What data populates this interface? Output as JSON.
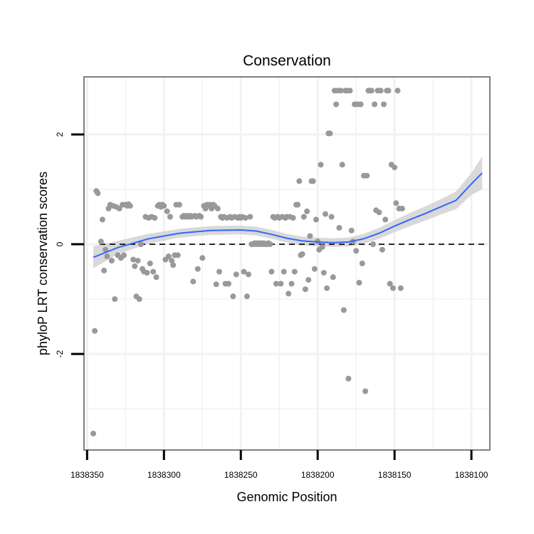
{
  "chart_data": {
    "type": "scatter",
    "title": "Conservation",
    "xlabel": "Genomic Position",
    "ylabel": "phyloP LRT conservation scores",
    "x_reversed": true,
    "xlim": [
      1838352,
      1838088
    ],
    "ylim": [
      -3.75,
      3.05
    ],
    "x_ticks": [
      1838350,
      1838300,
      1838250,
      1838200,
      1838150,
      1838100
    ],
    "x_tick_labels": [
      "1838350",
      "1838300",
      "1838250",
      "1838200",
      "1838150",
      "1838100"
    ],
    "y_ticks": [
      2,
      0,
      -2
    ],
    "y_tick_labels": [
      "2",
      "0",
      "-2"
    ],
    "reference_line": {
      "y": 0,
      "style": "dashed",
      "color": "#000000"
    },
    "grid": true,
    "colors": {
      "points": "#999999",
      "smooth": "#3366ff",
      "ribbon": "#c8c8c8",
      "grid": "#f2f2f2",
      "border": "#808080"
    },
    "points": [
      [
        1838346,
        -3.45
      ],
      [
        1838345,
        -1.58
      ],
      [
        1838344,
        0.97
      ],
      [
        1838343,
        0.93
      ],
      [
        1838341,
        0.05
      ],
      [
        1838340,
        0.45
      ],
      [
        1838339,
        -0.48
      ],
      [
        1838338,
        -0.1
      ],
      [
        1838337,
        -0.22
      ],
      [
        1838336,
        0.65
      ],
      [
        1838335,
        0.72
      ],
      [
        1838334,
        -0.3
      ],
      [
        1838333,
        0.7
      ],
      [
        1838332,
        -1.0
      ],
      [
        1838331,
        0.68
      ],
      [
        1838330,
        -0.2
      ],
      [
        1838329,
        0.65
      ],
      [
        1838328,
        -0.25
      ],
      [
        1838327,
        0.72
      ],
      [
        1838326,
        -0.2
      ],
      [
        1838325,
        0.72
      ],
      [
        1838324,
        0.7
      ],
      [
        1838323,
        0.73
      ],
      [
        1838322,
        0.7
      ],
      [
        1838320,
        -0.28
      ],
      [
        1838319,
        -0.4
      ],
      [
        1838318,
        -0.95
      ],
      [
        1838317,
        -0.3
      ],
      [
        1838316,
        -1.0
      ],
      [
        1838315,
        0.0
      ],
      [
        1838314,
        -0.45
      ],
      [
        1838313,
        -0.5
      ],
      [
        1838312,
        0.5
      ],
      [
        1838311,
        -0.52
      ],
      [
        1838310,
        0.48
      ],
      [
        1838309,
        -0.35
      ],
      [
        1838308,
        0.5
      ],
      [
        1838307,
        -0.5
      ],
      [
        1838306,
        0.48
      ],
      [
        1838305,
        -0.6
      ],
      [
        1838304,
        0.7
      ],
      [
        1838303,
        0.72
      ],
      [
        1838302,
        0.68
      ],
      [
        1838301,
        0.72
      ],
      [
        1838300,
        0.7
      ],
      [
        1838299,
        -0.28
      ],
      [
        1838298,
        0.6
      ],
      [
        1838297,
        -0.22
      ],
      [
        1838296,
        0.5
      ],
      [
        1838295,
        -0.3
      ],
      [
        1838294,
        -0.38
      ],
      [
        1838293,
        -0.2
      ],
      [
        1838292,
        0.72
      ],
      [
        1838291,
        -0.2
      ],
      [
        1838290,
        0.72
      ],
      [
        1838288,
        0.5
      ],
      [
        1838287,
        0.52
      ],
      [
        1838286,
        0.5
      ],
      [
        1838285,
        0.52
      ],
      [
        1838284,
        0.5
      ],
      [
        1838283,
        0.52
      ],
      [
        1838282,
        0.5
      ],
      [
        1838281,
        -0.68
      ],
      [
        1838280,
        0.52
      ],
      [
        1838279,
        0.5
      ],
      [
        1838278,
        -0.45
      ],
      [
        1838277,
        0.52
      ],
      [
        1838276,
        0.5
      ],
      [
        1838275,
        -0.25
      ],
      [
        1838274,
        0.7
      ],
      [
        1838273,
        0.65
      ],
      [
        1838272,
        0.72
      ],
      [
        1838271,
        0.7
      ],
      [
        1838270,
        0.72
      ],
      [
        1838269,
        0.65
      ],
      [
        1838268,
        0.72
      ],
      [
        1838267,
        0.7
      ],
      [
        1838266,
        -0.73
      ],
      [
        1838265,
        0.65
      ],
      [
        1838264,
        -0.5
      ],
      [
        1838263,
        0.5
      ],
      [
        1838262,
        0.48
      ],
      [
        1838261,
        0.5
      ],
      [
        1838260,
        -0.72
      ],
      [
        1838259,
        0.48
      ],
      [
        1838258,
        -0.72
      ],
      [
        1838257,
        0.5
      ],
      [
        1838256,
        0.48
      ],
      [
        1838255,
        -0.95
      ],
      [
        1838254,
        0.5
      ],
      [
        1838253,
        -0.55
      ],
      [
        1838252,
        0.48
      ],
      [
        1838251,
        0.5
      ],
      [
        1838250,
        0.48
      ],
      [
        1838249,
        0.5
      ],
      [
        1838248,
        -0.5
      ],
      [
        1838247,
        0.48
      ],
      [
        1838246,
        -0.95
      ],
      [
        1838245,
        -0.55
      ],
      [
        1838244,
        0.5
      ],
      [
        1838243,
        0.0
      ],
      [
        1838242,
        0.0
      ],
      [
        1838241,
        0.02
      ],
      [
        1838240,
        0.0
      ],
      [
        1838239,
        0.02
      ],
      [
        1838238,
        0.0
      ],
      [
        1838237,
        0.02
      ],
      [
        1838236,
        0.0
      ],
      [
        1838235,
        0.02
      ],
      [
        1838234,
        0.0
      ],
      [
        1838233,
        0.0
      ],
      [
        1838232,
        0.02
      ],
      [
        1838231,
        0.0
      ],
      [
        1838230,
        -0.5
      ],
      [
        1838229,
        0.5
      ],
      [
        1838228,
        0.48
      ],
      [
        1838227,
        -0.72
      ],
      [
        1838226,
        0.5
      ],
      [
        1838225,
        0.48
      ],
      [
        1838224,
        -0.72
      ],
      [
        1838223,
        0.5
      ],
      [
        1838222,
        -0.5
      ],
      [
        1838221,
        0.48
      ],
      [
        1838220,
        0.5
      ],
      [
        1838219,
        -0.9
      ],
      [
        1838218,
        0.5
      ],
      [
        1838217,
        -0.72
      ],
      [
        1838216,
        0.48
      ],
      [
        1838215,
        -0.5
      ],
      [
        1838214,
        0.72
      ],
      [
        1838213,
        0.72
      ],
      [
        1838212,
        1.15
      ],
      [
        1838211,
        -0.2
      ],
      [
        1838210,
        -0.18
      ],
      [
        1838209,
        0.5
      ],
      [
        1838208,
        -0.82
      ],
      [
        1838207,
        0.6
      ],
      [
        1838206,
        -0.65
      ],
      [
        1838205,
        0.15
      ],
      [
        1838204,
        1.15
      ],
      [
        1838203,
        1.15
      ],
      [
        1838202,
        -0.45
      ],
      [
        1838201,
        0.45
      ],
      [
        1838200,
        0.05
      ],
      [
        1838199,
        -0.1
      ],
      [
        1838198,
        1.45
      ],
      [
        1838197,
        -0.05
      ],
      [
        1838196,
        -0.52
      ],
      [
        1838195,
        0.55
      ],
      [
        1838194,
        -0.8
      ],
      [
        1838193,
        2.02
      ],
      [
        1838192,
        2.02
      ],
      [
        1838191,
        0.5
      ],
      [
        1838190,
        -0.6
      ],
      [
        1838189,
        2.8
      ],
      [
        1838188,
        2.55
      ],
      [
        1838187,
        2.8
      ],
      [
        1838186,
        0.3
      ],
      [
        1838185,
        2.8
      ],
      [
        1838184,
        1.45
      ],
      [
        1838183,
        -1.2
      ],
      [
        1838182,
        2.8
      ],
      [
        1838181,
        2.8
      ],
      [
        1838180,
        -2.45
      ],
      [
        1838179,
        2.8
      ],
      [
        1838178,
        0.25
      ],
      [
        1838177,
        0.05
      ],
      [
        1838176,
        2.55
      ],
      [
        1838175,
        -0.12
      ],
      [
        1838174,
        2.55
      ],
      [
        1838173,
        -0.7
      ],
      [
        1838172,
        2.55
      ],
      [
        1838171,
        -0.35
      ],
      [
        1838170,
        1.25
      ],
      [
        1838169,
        -2.68
      ],
      [
        1838168,
        1.25
      ],
      [
        1838167,
        2.8
      ],
      [
        1838166,
        2.8
      ],
      [
        1838165,
        2.8
      ],
      [
        1838164,
        0.0
      ],
      [
        1838163,
        2.55
      ],
      [
        1838162,
        0.62
      ],
      [
        1838161,
        2.8
      ],
      [
        1838160,
        0.58
      ],
      [
        1838159,
        2.8
      ],
      [
        1838158,
        -0.1
      ],
      [
        1838157,
        2.55
      ],
      [
        1838156,
        0.45
      ],
      [
        1838155,
        2.8
      ],
      [
        1838154,
        2.8
      ],
      [
        1838153,
        -0.72
      ],
      [
        1838152,
        1.45
      ],
      [
        1838151,
        -0.8
      ],
      [
        1838150,
        1.4
      ],
      [
        1838149,
        0.75
      ],
      [
        1838148,
        2.8
      ],
      [
        1838147,
        0.65
      ],
      [
        1838146,
        -0.8
      ],
      [
        1838145,
        0.65
      ]
    ],
    "smooth_line": {
      "x": [
        1838346,
        1838330,
        1838310,
        1838290,
        1838270,
        1838250,
        1838240,
        1838230,
        1838220,
        1838210,
        1838200,
        1838190,
        1838180,
        1838170,
        1838160,
        1838150,
        1838140,
        1838130,
        1838120,
        1838110,
        1838100,
        1838093
      ],
      "y": [
        -0.24,
        -0.06,
        0.1,
        0.2,
        0.25,
        0.26,
        0.24,
        0.18,
        0.11,
        0.06,
        0.04,
        0.03,
        0.04,
        0.1,
        0.2,
        0.33,
        0.45,
        0.56,
        0.68,
        0.8,
        1.1,
        1.3
      ],
      "se": [
        0.2,
        0.12,
        0.09,
        0.08,
        0.08,
        0.08,
        0.08,
        0.08,
        0.08,
        0.08,
        0.08,
        0.08,
        0.08,
        0.09,
        0.1,
        0.11,
        0.12,
        0.13,
        0.14,
        0.16,
        0.2,
        0.3
      ]
    }
  }
}
